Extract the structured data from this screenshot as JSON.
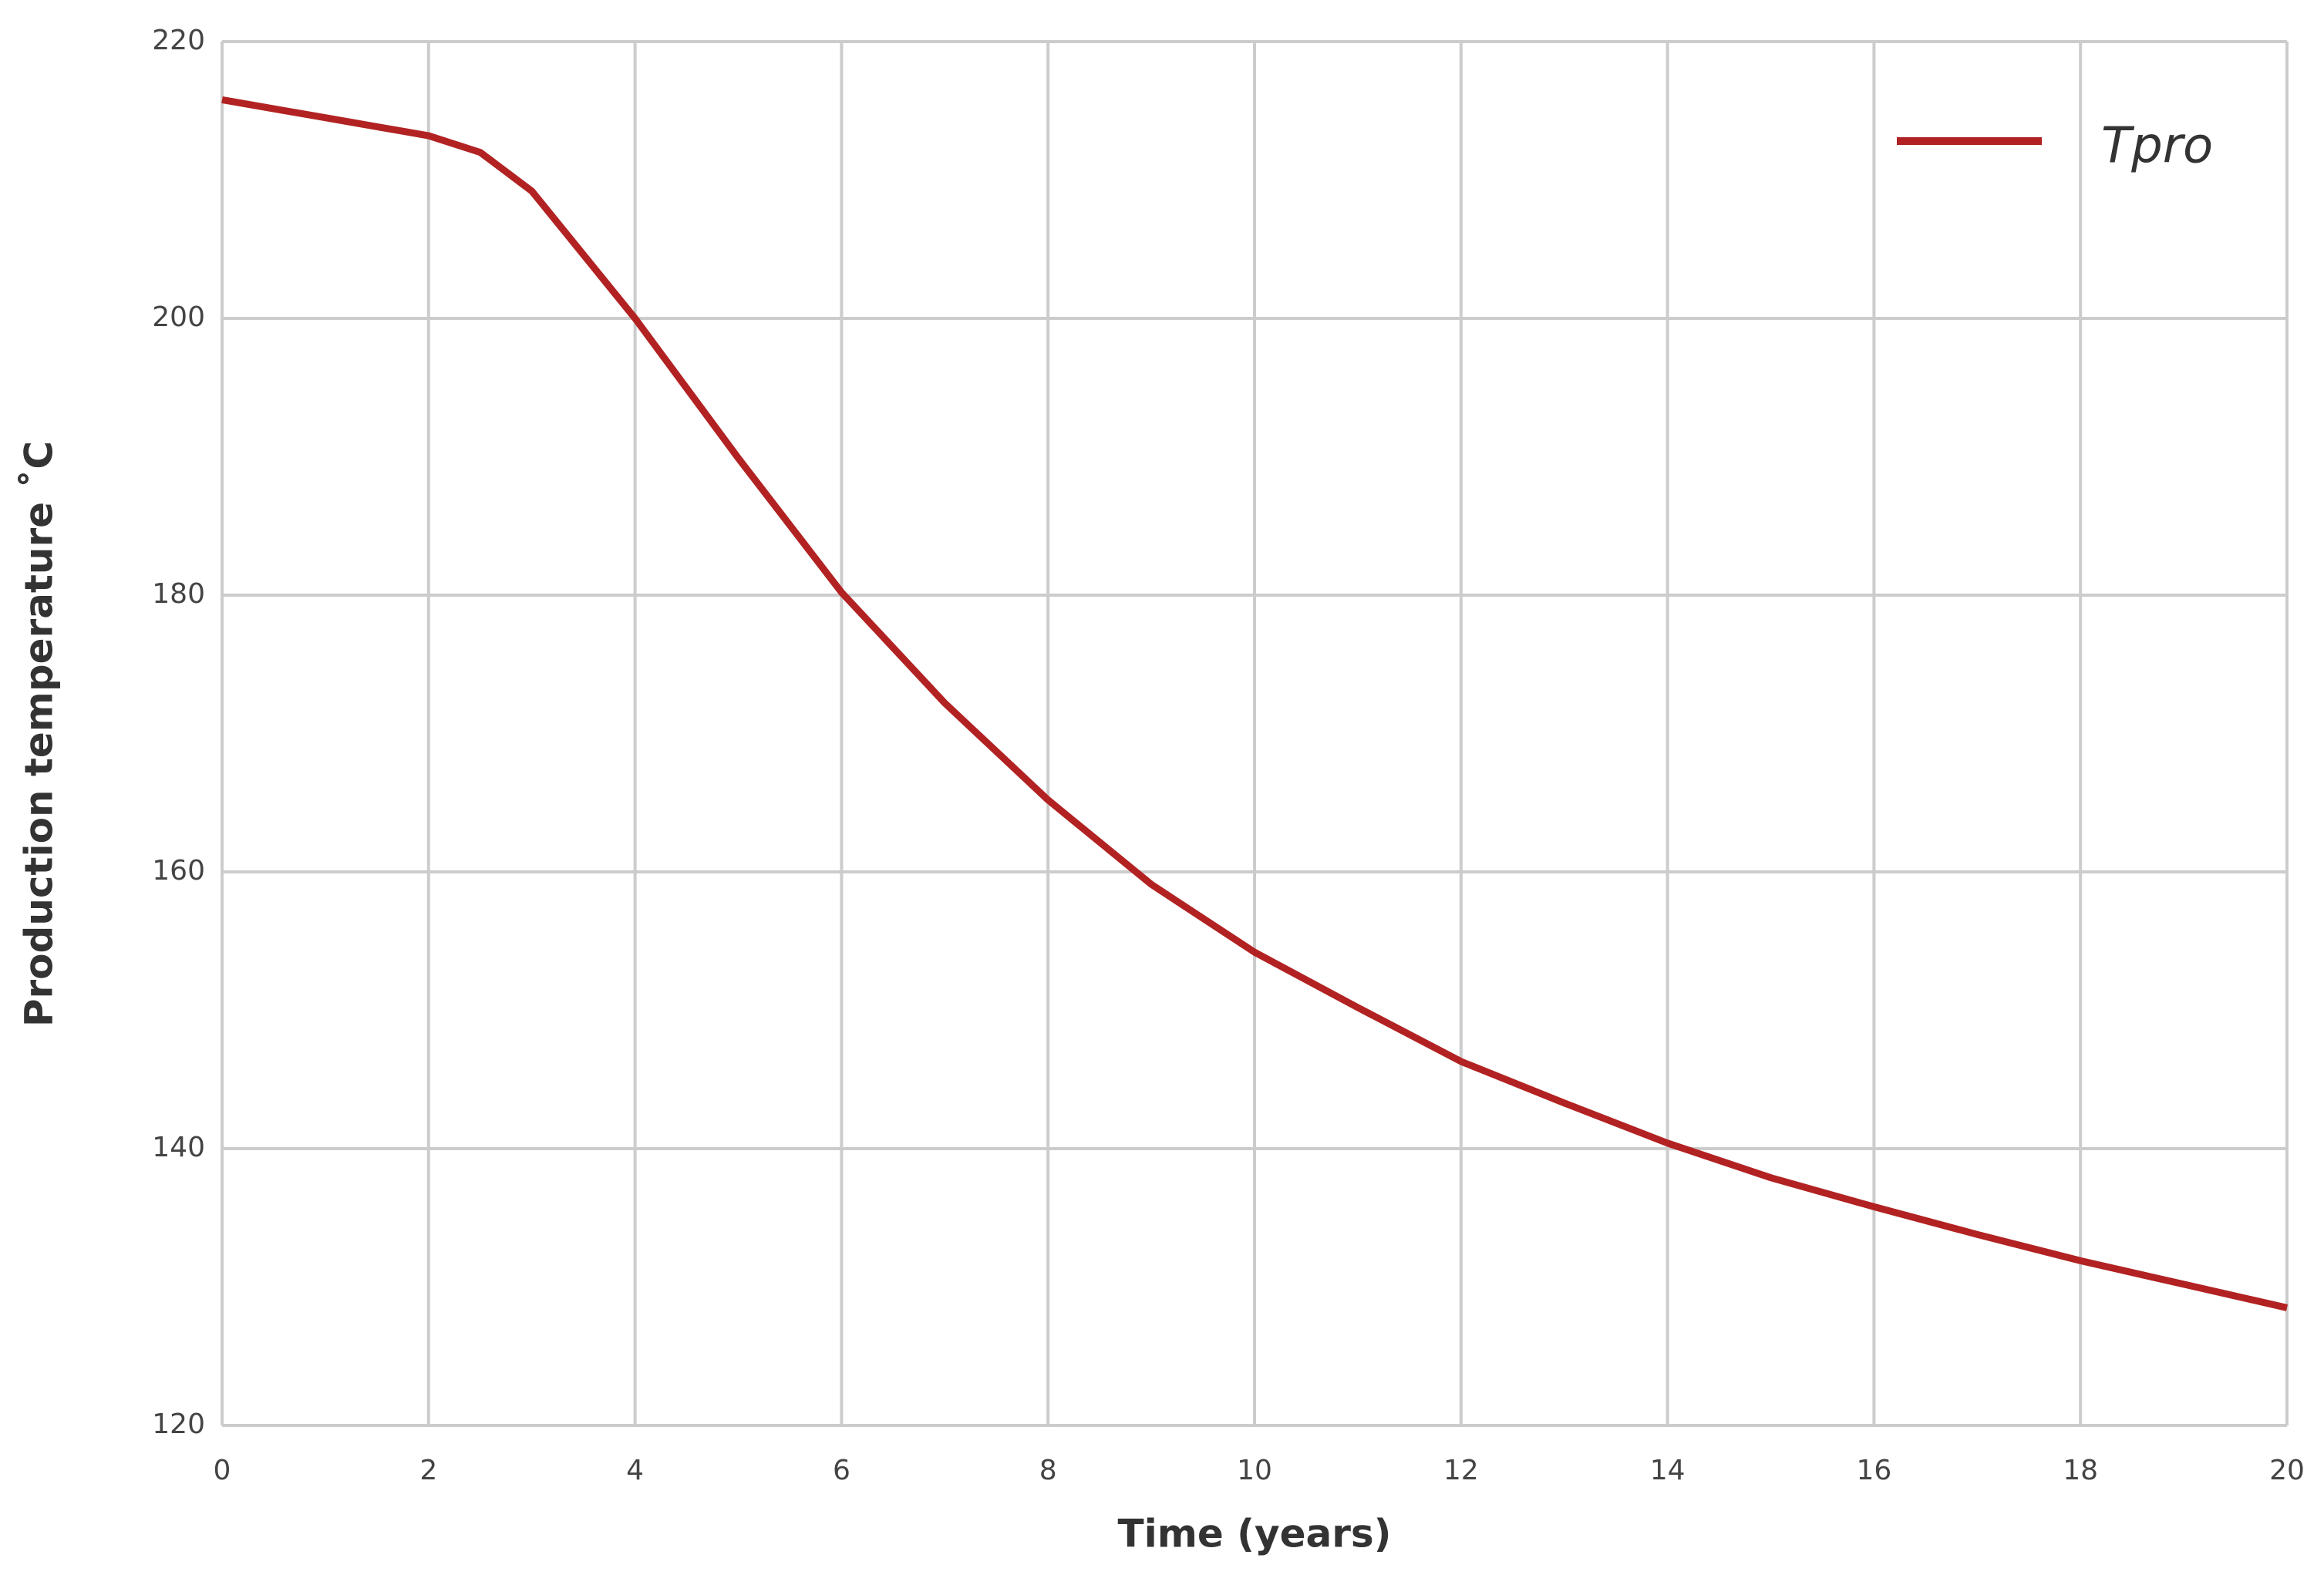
{
  "chart_data": {
    "type": "line",
    "x_label": "Time (years)",
    "y_label": "Production temperature  ˚C",
    "x": [
      0,
      1,
      2,
      2.5,
      3,
      4,
      5,
      6,
      7,
      8,
      9,
      10,
      11,
      12,
      13,
      14,
      15,
      16,
      17,
      18,
      19,
      20
    ],
    "series": [
      {
        "name": "Tpro",
        "color": "#b22222",
        "values": [
          215.8,
          214.5,
          213.2,
          212.0,
          209.2,
          200.0,
          189.9,
          180.2,
          172.2,
          165.2,
          159.1,
          154.2,
          150.2,
          146.3,
          143.3,
          140.4,
          137.9,
          135.8,
          133.8,
          131.9,
          130.2,
          128.5
        ]
      }
    ],
    "xlim": [
      0,
      20
    ],
    "xticks": [
      0,
      2,
      4,
      6,
      8,
      10,
      12,
      14,
      16,
      18,
      20
    ],
    "ylim": [
      120,
      220
    ],
    "yticks": [
      120,
      140,
      160,
      180,
      200,
      220
    ],
    "grid": true,
    "legend": "upper right"
  }
}
